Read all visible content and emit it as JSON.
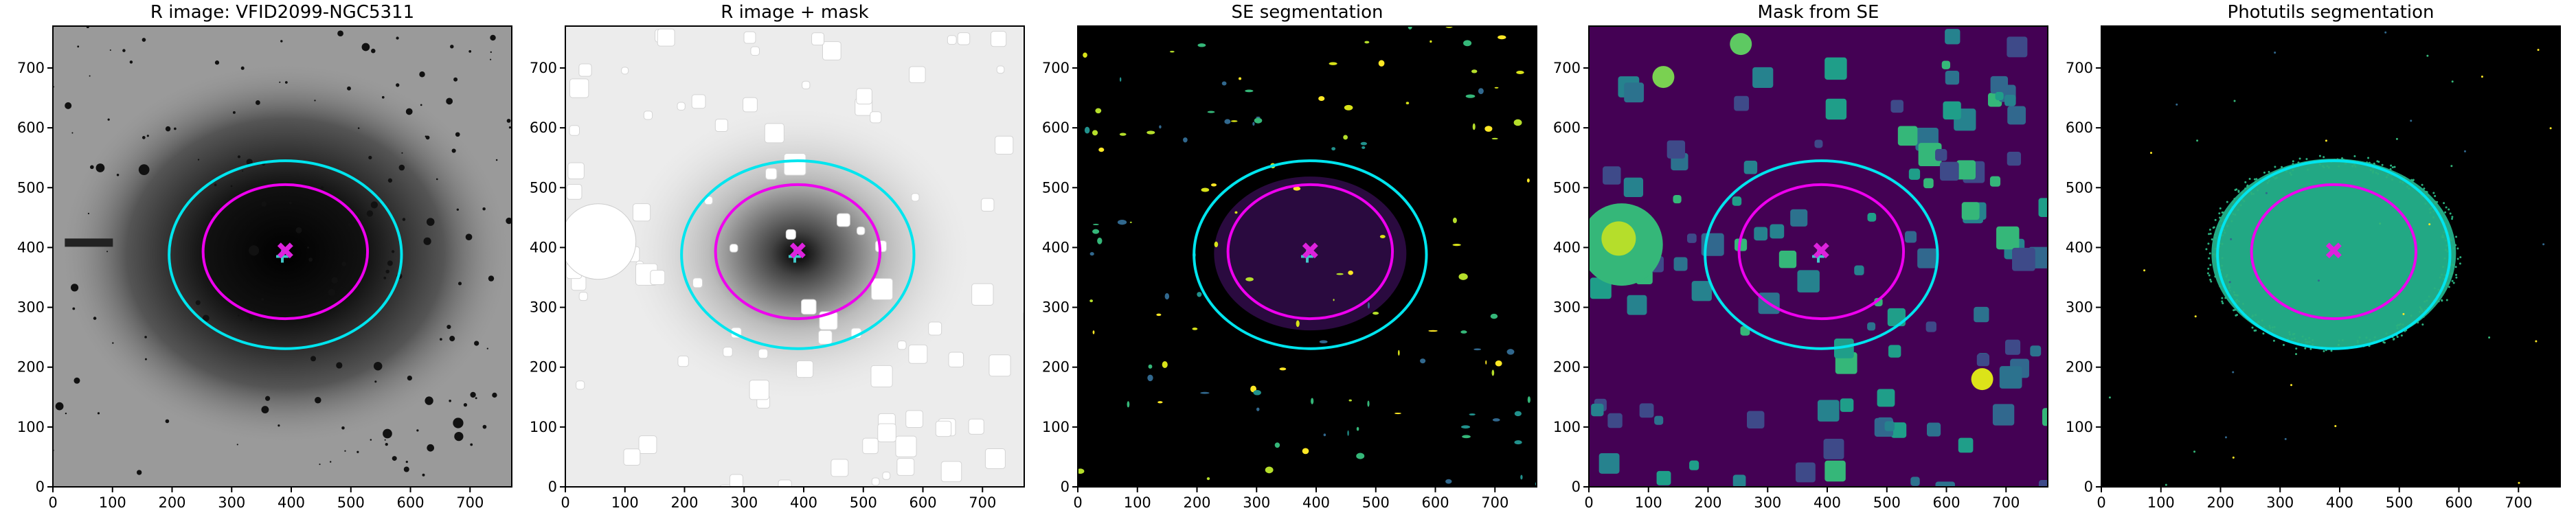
{
  "chart_data": [
    {
      "type": "image",
      "title": "R image: VFID2099-NGC5311",
      "background": "#9a9a9a",
      "xlim": [
        0,
        770
      ],
      "ylim": [
        0,
        770
      ],
      "xticks": [
        0,
        100,
        200,
        300,
        400,
        500,
        600,
        700
      ],
      "yticks": [
        0,
        100,
        200,
        300,
        400,
        500,
        600,
        700
      ],
      "ellipses": [
        {
          "color": "#00e5ee",
          "center": [
            390,
            388
          ],
          "rx": 195,
          "ry": 157
        },
        {
          "color": "#ee00ee",
          "center": [
            390,
            393
          ],
          "rx": 138,
          "ry": 112
        }
      ],
      "markers": [
        {
          "color": "#40c8c8",
          "x": 385,
          "y": 385,
          "shape": "plus"
        },
        {
          "color": "#dd22dd",
          "x": 390,
          "y": 395,
          "shape": "x"
        }
      ]
    },
    {
      "type": "image",
      "title": "R image + mask",
      "background": "#ececec",
      "xlim": [
        0,
        770
      ],
      "ylim": [
        0,
        770
      ],
      "xticks": [
        0,
        100,
        200,
        300,
        400,
        500,
        600,
        700
      ],
      "yticks": [
        0,
        100,
        200,
        300,
        400,
        500,
        600,
        700
      ],
      "ellipses": [
        {
          "color": "#00e5ee",
          "center": [
            390,
            388
          ],
          "rx": 195,
          "ry": 157
        },
        {
          "color": "#ee00ee",
          "center": [
            390,
            393
          ],
          "rx": 138,
          "ry": 112
        }
      ],
      "markers": [
        {
          "color": "#40c8c8",
          "x": 385,
          "y": 385,
          "shape": "plus"
        },
        {
          "color": "#dd22dd",
          "x": 390,
          "y": 395,
          "shape": "x"
        }
      ]
    },
    {
      "type": "image",
      "title": "SE segmentation",
      "background": "#000000",
      "xlim": [
        0,
        770
      ],
      "ylim": [
        0,
        770
      ],
      "xticks": [
        0,
        100,
        200,
        300,
        400,
        500,
        600,
        700
      ],
      "yticks": [
        0,
        100,
        200,
        300,
        400,
        500,
        600,
        700
      ],
      "ellipses": [
        {
          "color": "#00e5ee",
          "center": [
            390,
            388
          ],
          "rx": 195,
          "ry": 157
        },
        {
          "color": "#ee00ee",
          "center": [
            390,
            393
          ],
          "rx": 138,
          "ry": 112
        }
      ],
      "markers": [
        {
          "color": "#40c8c8",
          "x": 385,
          "y": 385,
          "shape": "plus"
        },
        {
          "color": "#dd22dd",
          "x": 390,
          "y": 395,
          "shape": "x"
        }
      ]
    },
    {
      "type": "image",
      "title": "Mask from SE",
      "background": "#440154",
      "xlim": [
        0,
        770
      ],
      "ylim": [
        0,
        770
      ],
      "xticks": [
        0,
        100,
        200,
        300,
        400,
        500,
        600,
        700
      ],
      "yticks": [
        0,
        100,
        200,
        300,
        400,
        500,
        600,
        700
      ],
      "ellipses": [
        {
          "color": "#00e5ee",
          "center": [
            390,
            388
          ],
          "rx": 195,
          "ry": 157
        },
        {
          "color": "#ee00ee",
          "center": [
            390,
            393
          ],
          "rx": 138,
          "ry": 112
        }
      ],
      "markers": [
        {
          "color": "#40c8c8",
          "x": 385,
          "y": 385,
          "shape": "plus"
        },
        {
          "color": "#dd22dd",
          "x": 390,
          "y": 395,
          "shape": "x"
        }
      ]
    },
    {
      "type": "image",
      "title": "Photutils segmentation",
      "background": "#000000",
      "xlim": [
        0,
        770
      ],
      "ylim": [
        0,
        770
      ],
      "xticks": [
        0,
        100,
        200,
        300,
        400,
        500,
        600,
        700
      ],
      "yticks": [
        0,
        100,
        200,
        300,
        400,
        500,
        600,
        700
      ],
      "ellipses": [
        {
          "color": "#00e5ee",
          "center": [
            390,
            388
          ],
          "rx": 195,
          "ry": 157
        },
        {
          "color": "#ee00ee",
          "center": [
            390,
            393
          ],
          "rx": 138,
          "ry": 112
        }
      ],
      "markers": [
        {
          "color": "#dd22dd",
          "x": 390,
          "y": 395,
          "shape": "x"
        }
      ]
    }
  ]
}
